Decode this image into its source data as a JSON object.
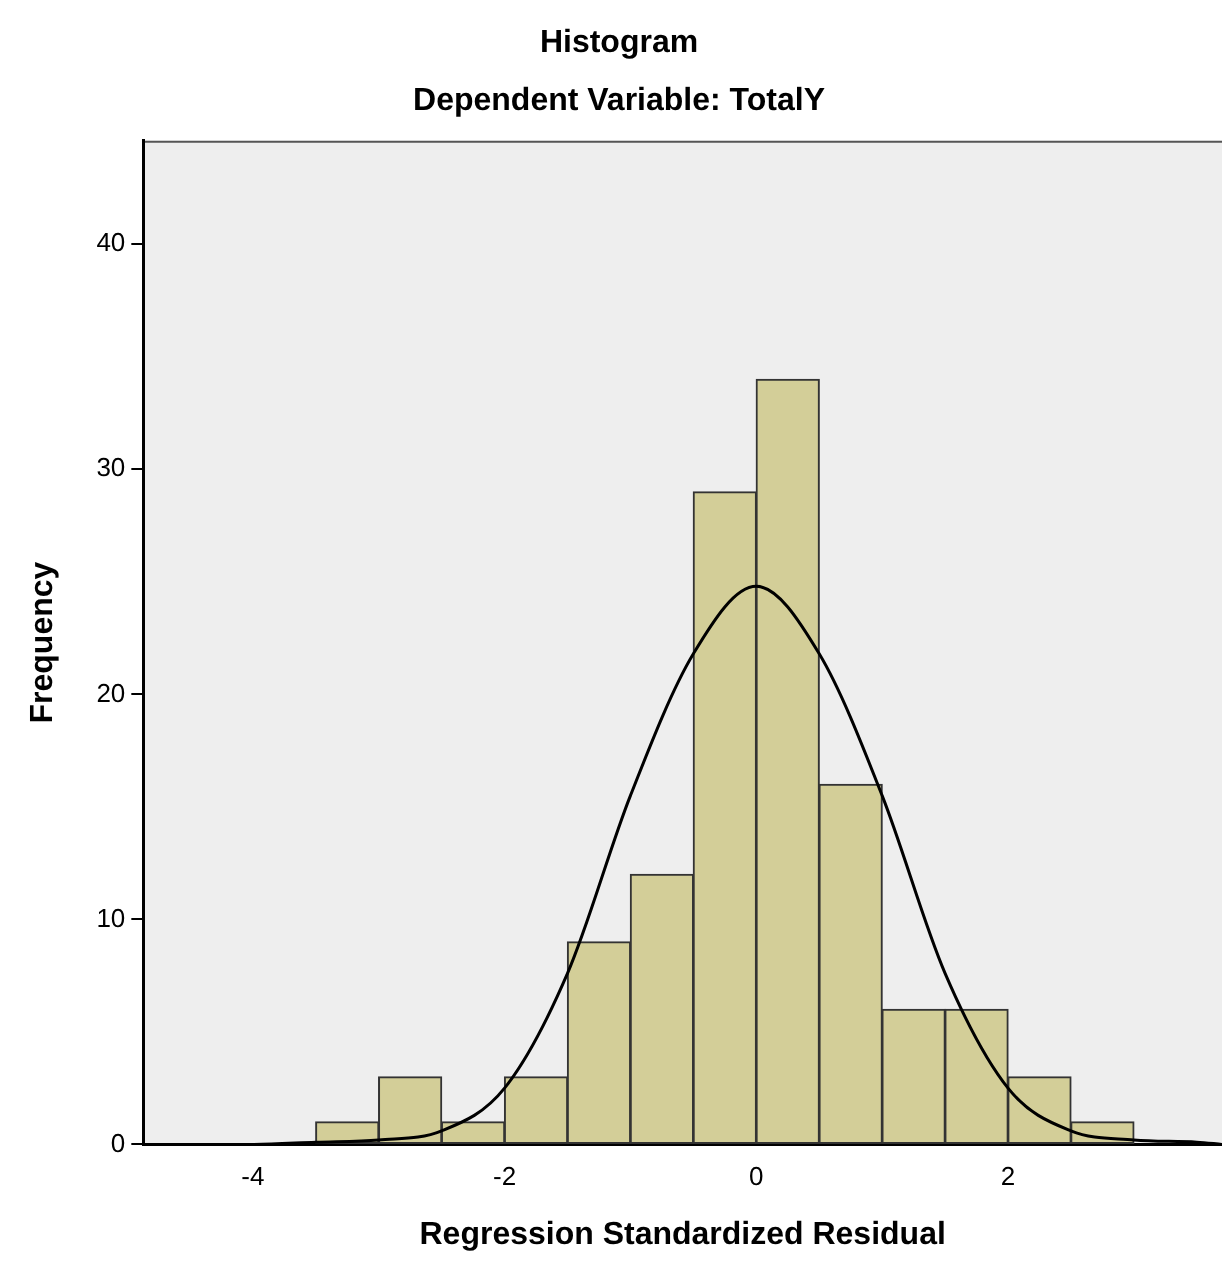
{
  "chart_data": {
    "type": "histogram",
    "title": "Histogram",
    "subtitle": "Dependent Variable: TotalY",
    "xlabel": "Regression Standardized Residual",
    "ylabel": "Frequency",
    "bins": [
      -3.5,
      -3,
      -2.5,
      -2,
      -1.5,
      -1,
      -0.5,
      0,
      0.5,
      1,
      1.5,
      2,
      2.5,
      3
    ],
    "values": [
      1,
      3,
      1,
      3,
      9,
      12,
      29,
      34,
      16,
      6,
      6,
      3,
      1
    ],
    "color": "#d3ce98",
    "series": [
      {
        "type": "line",
        "color": "#000000",
        "x": [
          -4.85,
          -4,
          -3.5,
          -3,
          -2.5,
          -2,
          -1.5,
          -1,
          -0.5,
          0,
          0.5,
          1,
          1.5,
          2,
          2.5,
          3,
          3.5,
          3.7
        ],
        "values": [
          0,
          0,
          0.1,
          0.2,
          0.6,
          2.5,
          7.6,
          15.5,
          21.8,
          24.8,
          21.8,
          15.5,
          7.6,
          2.5,
          0.6,
          0.2,
          0.1,
          0
        ]
      }
    ],
    "xlim": [
      -4.87,
      3.7
    ],
    "ylim": [
      0,
      44.6
    ],
    "xticks": [
      -4,
      -2,
      0,
      2
    ],
    "yticks": [
      0,
      10,
      20,
      30,
      40
    ],
    "grid": false,
    "legend": false,
    "marker": "none"
  }
}
